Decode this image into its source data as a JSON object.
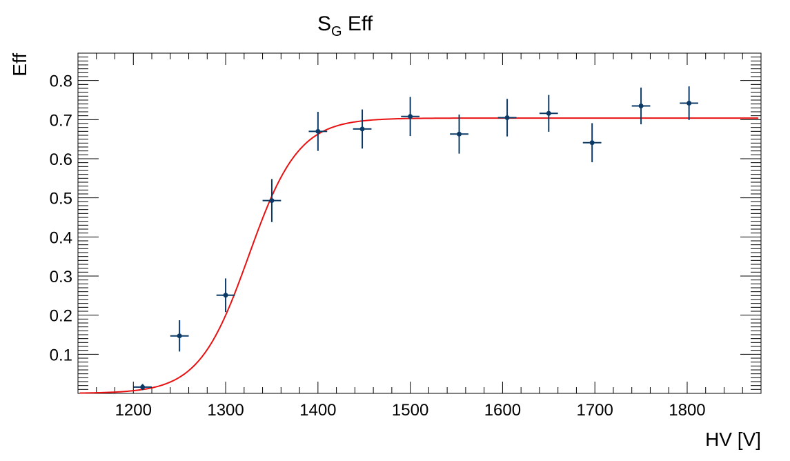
{
  "chart_data": {
    "type": "scatter",
    "title_main": "S",
    "title_sub": "G",
    "title_rest": " Eff",
    "xlabel": "HV [V]",
    "ylabel": "Eff",
    "xlim": [
      1140,
      1880
    ],
    "ylim": [
      0.0,
      0.87
    ],
    "x_ticks": [
      1200,
      1300,
      1400,
      1500,
      1600,
      1700,
      1800
    ],
    "x_tick_labels": [
      "1200",
      "1300",
      "1400",
      "1500",
      "1600",
      "1700",
      "1800"
    ],
    "y_ticks": [
      0.1,
      0.2,
      0.3,
      0.4,
      0.5,
      0.6,
      0.7,
      0.8
    ],
    "y_tick_labels": [
      "0.1",
      "0.2",
      "0.3",
      "0.4",
      "0.5",
      "0.6",
      "0.7",
      "0.8"
    ],
    "grid": false,
    "series": [
      {
        "type": "points_with_errors",
        "color": "#0b3a66",
        "points": [
          {
            "x": 1210,
            "y": 0.016,
            "xerr": 10,
            "yerr_low": 0.008,
            "yerr_high": 0.008
          },
          {
            "x": 1250,
            "y": 0.147,
            "xerr": 10,
            "yerr_low": 0.04,
            "yerr_high": 0.04
          },
          {
            "x": 1300,
            "y": 0.251,
            "xerr": 10,
            "yerr_low": 0.043,
            "yerr_high": 0.043
          },
          {
            "x": 1350,
            "y": 0.493,
            "xerr": 10,
            "yerr_low": 0.055,
            "yerr_high": 0.055
          },
          {
            "x": 1400,
            "y": 0.67,
            "xerr": 10,
            "yerr_low": 0.05,
            "yerr_high": 0.05
          },
          {
            "x": 1448,
            "y": 0.676,
            "xerr": 10,
            "yerr_low": 0.05,
            "yerr_high": 0.05
          },
          {
            "x": 1500,
            "y": 0.708,
            "xerr": 10,
            "yerr_low": 0.05,
            "yerr_high": 0.05
          },
          {
            "x": 1553,
            "y": 0.663,
            "xerr": 10,
            "yerr_low": 0.05,
            "yerr_high": 0.05
          },
          {
            "x": 1605,
            "y": 0.705,
            "xerr": 10,
            "yerr_low": 0.048,
            "yerr_high": 0.048
          },
          {
            "x": 1650,
            "y": 0.716,
            "xerr": 10,
            "yerr_low": 0.047,
            "yerr_high": 0.047
          },
          {
            "x": 1697,
            "y": 0.641,
            "xerr": 10,
            "yerr_low": 0.05,
            "yerr_high": 0.05
          },
          {
            "x": 1750,
            "y": 0.735,
            "xerr": 10,
            "yerr_low": 0.047,
            "yerr_high": 0.047
          },
          {
            "x": 1802,
            "y": 0.742,
            "xerr": 10,
            "yerr_low": 0.043,
            "yerr_high": 0.043
          }
        ]
      },
      {
        "type": "fit_curve",
        "color": "#e81010",
        "function": "sigmoid",
        "plateau": 0.704,
        "midpoint": 1325,
        "width": 27,
        "x_range": [
          1142,
          1877
        ]
      }
    ]
  }
}
